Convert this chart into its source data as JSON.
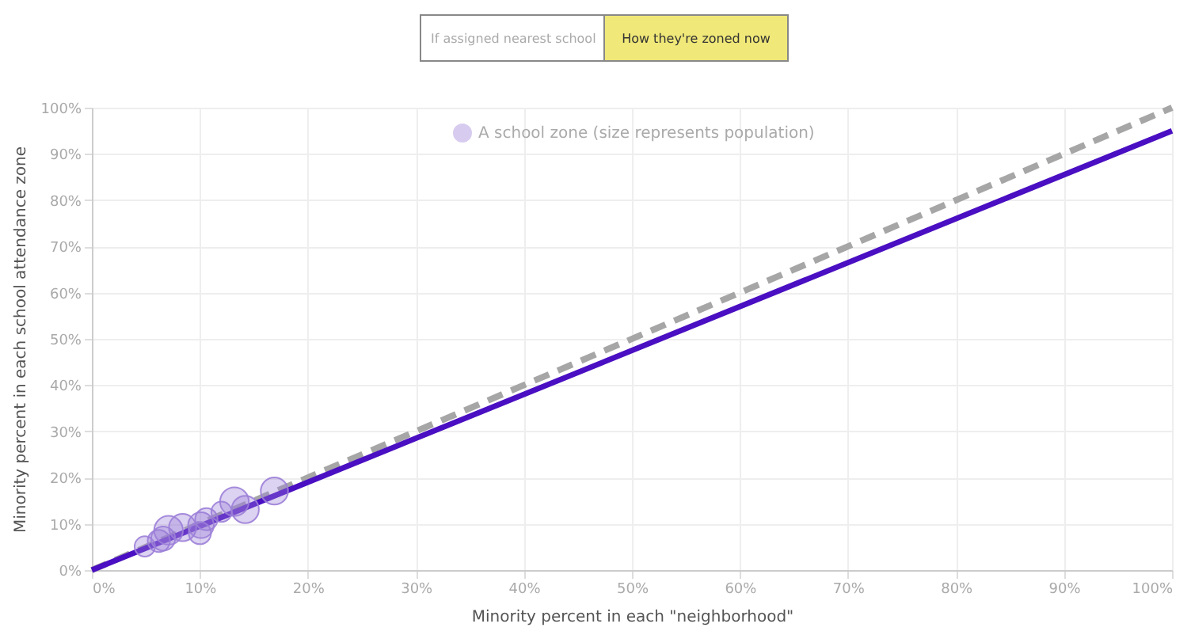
{
  "chart_data": {
    "type": "bubble",
    "xlabel": "Minority percent in each \"neighborhood\"",
    "ylabel": "Minority percent in each school attendance zone",
    "annotations": [
      "If assigned nearest school",
      "How they're zoned now"
    ],
    "xlim": [
      0,
      100
    ],
    "ylim": [
      0,
      100
    ],
    "xticks": [
      {
        "value": 0,
        "label": "0%"
      },
      {
        "value": 10,
        "label": "10%"
      },
      {
        "value": 20,
        "label": "20%"
      },
      {
        "value": 30,
        "label": "30%"
      },
      {
        "value": 40,
        "label": "40%"
      },
      {
        "value": 50,
        "label": "50%"
      },
      {
        "value": 60,
        "label": "60%"
      },
      {
        "value": 70,
        "label": "70%"
      },
      {
        "value": 80,
        "label": "80%"
      },
      {
        "value": 90,
        "label": "90%"
      },
      {
        "value": 100,
        "label": "100%"
      }
    ],
    "yticks": [
      {
        "value": 0,
        "label": "0%"
      },
      {
        "value": 10,
        "label": "10%"
      },
      {
        "value": 20,
        "label": "20%"
      },
      {
        "value": 30,
        "label": "30%"
      },
      {
        "value": 40,
        "label": "40%"
      },
      {
        "value": 50,
        "label": "50%"
      },
      {
        "value": 60,
        "label": "60%"
      },
      {
        "value": 70,
        "label": "70%"
      },
      {
        "value": 80,
        "label": "80%"
      },
      {
        "value": 90,
        "label": "90%"
      },
      {
        "value": 100,
        "label": "100%"
      }
    ],
    "grid": true,
    "legend": "top",
    "series": [
      {
        "type": "line",
        "color": "#a6a6a6",
        "line_style": "dashed",
        "marker": "none",
        "x": [
          0,
          100
        ],
        "values": [
          0,
          100
        ]
      },
      {
        "type": "line",
        "color": "#4a0fc2",
        "line_style": "solid",
        "marker": "none",
        "x": [
          0,
          100
        ],
        "values": [
          0,
          95
        ]
      },
      {
        "type": "bubble",
        "name": "A school zone (size represents population)",
        "color": "#9c7fd8",
        "marker": "circle",
        "x": [
          4.9,
          6.2,
          6.6,
          7.1,
          8.4,
          10.0,
          10.1,
          10.6,
          12.0,
          13.2,
          14.2,
          16.9
        ],
        "values": [
          5.1,
          6.3,
          6.8,
          8.6,
          9.2,
          8.0,
          9.7,
          11.0,
          12.6,
          14.8,
          13.1,
          17.1
        ],
        "sizes": [
          0.5,
          0.6,
          0.7,
          1,
          0.9,
          0.6,
          0.8,
          0.6,
          0.5,
          1,
          0.9,
          0.9
        ]
      }
    ]
  }
}
